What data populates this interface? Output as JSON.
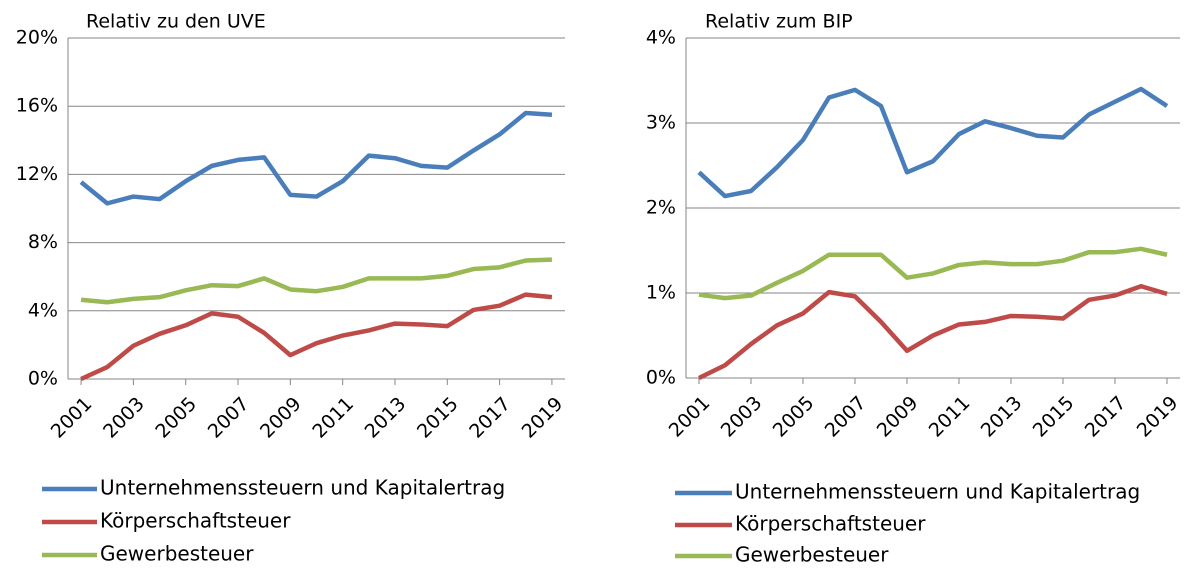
{
  "chart_data": [
    {
      "type": "line",
      "title": "Relativ zu den UVE",
      "x": [
        2001,
        2002,
        2003,
        2004,
        2005,
        2006,
        2007,
        2008,
        2009,
        2010,
        2011,
        2012,
        2013,
        2014,
        2015,
        2016,
        2017,
        2018,
        2019
      ],
      "xlim": [
        2000.5,
        2019.5
      ],
      "xticks": [
        2001,
        2003,
        2005,
        2007,
        2009,
        2011,
        2013,
        2015,
        2017,
        2019
      ],
      "ylim": [
        0,
        20
      ],
      "yticks": [
        {
          "value": 0,
          "label": "0%"
        },
        {
          "value": 4,
          "label": "4%"
        },
        {
          "value": 8,
          "label": "8%"
        },
        {
          "value": 12,
          "label": "12%"
        },
        {
          "value": 16,
          "label": "16%"
        },
        {
          "value": 20,
          "label": "20%"
        }
      ],
      "grid": true,
      "series": [
        {
          "name": "Unternehmenssteuern und Kapitalertrag",
          "color": "#4a7ebb",
          "values": [
            11.55,
            10.3,
            10.7,
            10.55,
            11.6,
            12.5,
            12.85,
            13.0,
            10.8,
            10.7,
            11.6,
            13.1,
            12.95,
            12.5,
            12.4,
            13.4,
            14.35,
            15.6,
            15.5
          ]
        },
        {
          "name": "Körperschaftsteuer",
          "color": "#be4b48",
          "values": [
            0,
            0.7,
            1.95,
            2.65,
            3.15,
            3.85,
            3.65,
            2.7,
            1.4,
            2.1,
            2.55,
            2.85,
            3.25,
            3.2,
            3.1,
            4.05,
            4.3,
            4.95,
            4.8
          ]
        },
        {
          "name": "Gewerbesteuer",
          "color": "#98b954",
          "values": [
            4.65,
            4.5,
            4.7,
            4.8,
            5.2,
            5.5,
            5.45,
            5.9,
            5.25,
            5.15,
            5.4,
            5.9,
            5.9,
            5.9,
            6.05,
            6.45,
            6.55,
            6.95,
            7.0
          ]
        }
      ]
    },
    {
      "type": "line",
      "title": "Relativ zum BIP",
      "x": [
        2001,
        2002,
        2003,
        2004,
        2005,
        2006,
        2007,
        2008,
        2009,
        2010,
        2011,
        2012,
        2013,
        2014,
        2015,
        2016,
        2017,
        2018,
        2019
      ],
      "xlim": [
        2000.5,
        2019.5
      ],
      "xticks": [
        2001,
        2003,
        2005,
        2007,
        2009,
        2011,
        2013,
        2015,
        2017,
        2019
      ],
      "ylim": [
        0,
        4
      ],
      "yticks": [
        {
          "value": 0,
          "label": "0%"
        },
        {
          "value": 1,
          "label": "1%"
        },
        {
          "value": 2,
          "label": "2%"
        },
        {
          "value": 3,
          "label": "3%"
        },
        {
          "value": 4,
          "label": "4%"
        }
      ],
      "grid": true,
      "series": [
        {
          "name": "Unternehmenssteuern und Kapitalertrag",
          "color": "#4a7ebb",
          "values": [
            2.42,
            2.14,
            2.2,
            2.48,
            2.8,
            3.3,
            3.39,
            3.2,
            2.42,
            2.55,
            2.87,
            3.02,
            2.94,
            2.85,
            2.83,
            3.1,
            3.25,
            3.4,
            3.2
          ]
        },
        {
          "name": "Körperschaftsteuer",
          "color": "#be4b48",
          "values": [
            0,
            0.15,
            0.4,
            0.62,
            0.76,
            1.01,
            0.96,
            0.66,
            0.32,
            0.5,
            0.63,
            0.66,
            0.73,
            0.72,
            0.7,
            0.92,
            0.97,
            1.08,
            0.99
          ]
        },
        {
          "name": "Gewerbesteuer",
          "color": "#98b954",
          "values": [
            0.98,
            0.94,
            0.97,
            1.12,
            1.26,
            1.45,
            1.45,
            1.45,
            1.18,
            1.23,
            1.33,
            1.36,
            1.34,
            1.34,
            1.38,
            1.48,
            1.48,
            1.52,
            1.45
          ]
        }
      ]
    }
  ]
}
